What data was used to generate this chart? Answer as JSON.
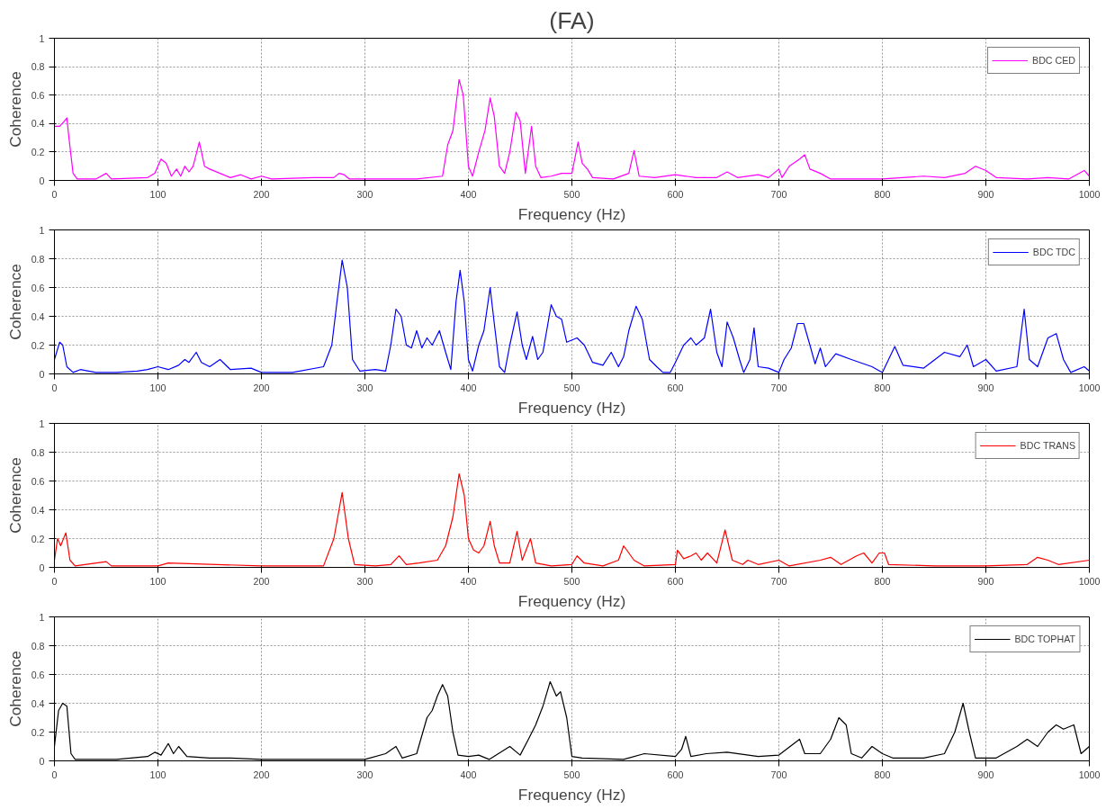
{
  "chart_data": [
    {
      "type": "line",
      "title": "(FA)",
      "xlabel": "Frequency (Hz)",
      "ylabel": "Coherence",
      "xlim": [
        0,
        1000
      ],
      "ylim": [
        0,
        1
      ],
      "xticks": [
        0,
        100,
        200,
        300,
        400,
        500,
        600,
        700,
        800,
        900,
        1000
      ],
      "yticks": [
        0,
        0.2,
        0.4,
        0.6,
        0.8,
        1
      ],
      "grid": true,
      "legend": "top right",
      "marker": "none",
      "line_style": "solid",
      "series": [
        {
          "name": "BDC CED",
          "color": "#ff00ff",
          "x": [
            0,
            5,
            10,
            12,
            14,
            18,
            22,
            40,
            50,
            55,
            90,
            97,
            103,
            108,
            113,
            118,
            122,
            126,
            130,
            134,
            140,
            145,
            150,
            160,
            170,
            180,
            190,
            200,
            210,
            250,
            270,
            275,
            280,
            285,
            300,
            350,
            375,
            380,
            385,
            391,
            395,
            400,
            404,
            410,
            416,
            421,
            425,
            430,
            435,
            440,
            446,
            450,
            455,
            461,
            465,
            470,
            480,
            490,
            500,
            506,
            510,
            515,
            520,
            540,
            555,
            560,
            565,
            580,
            600,
            620,
            640,
            650,
            660,
            680,
            690,
            700,
            703,
            710,
            720,
            725,
            730,
            740,
            750,
            800,
            840,
            860,
            880,
            890,
            900,
            910,
            940,
            960,
            980,
            995,
            1000
          ],
          "values": [
            0.38,
            0.38,
            0.42,
            0.44,
            0.3,
            0.05,
            0.01,
            0.01,
            0.05,
            0.01,
            0.02,
            0.05,
            0.15,
            0.12,
            0.03,
            0.08,
            0.03,
            0.1,
            0.06,
            0.1,
            0.27,
            0.1,
            0.08,
            0.05,
            0.02,
            0.04,
            0.01,
            0.03,
            0.01,
            0.02,
            0.02,
            0.05,
            0.04,
            0.01,
            0.01,
            0.01,
            0.03,
            0.25,
            0.35,
            0.71,
            0.6,
            0.1,
            0.03,
            0.2,
            0.35,
            0.58,
            0.45,
            0.1,
            0.05,
            0.2,
            0.48,
            0.42,
            0.05,
            0.38,
            0.1,
            0.02,
            0.03,
            0.05,
            0.05,
            0.27,
            0.12,
            0.08,
            0.02,
            0.01,
            0.05,
            0.21,
            0.03,
            0.02,
            0.04,
            0.02,
            0.02,
            0.06,
            0.02,
            0.04,
            0.02,
            0.08,
            0.02,
            0.1,
            0.15,
            0.18,
            0.08,
            0.05,
            0.01,
            0.01,
            0.03,
            0.02,
            0.05,
            0.1,
            0.07,
            0.02,
            0.01,
            0.02,
            0.01,
            0.07,
            0.03
          ]
        }
      ]
    },
    {
      "type": "line",
      "xlabel": "Frequency (Hz)",
      "ylabel": "Coherence",
      "xlim": [
        0,
        1000
      ],
      "ylim": [
        0,
        1
      ],
      "xticks": [
        0,
        100,
        200,
        300,
        400,
        500,
        600,
        700,
        800,
        900,
        1000
      ],
      "yticks": [
        0,
        0.2,
        0.4,
        0.6,
        0.8,
        1
      ],
      "grid": true,
      "legend": "top right",
      "marker": "none",
      "line_style": "solid",
      "series": [
        {
          "name": "BDC TDC",
          "color": "#0000ff",
          "x": [
            0,
            5,
            8,
            12,
            18,
            25,
            40,
            60,
            80,
            90,
            100,
            110,
            120,
            126,
            130,
            137,
            142,
            150,
            160,
            170,
            190,
            200,
            230,
            260,
            268,
            273,
            278,
            283,
            288,
            295,
            310,
            320,
            325,
            330,
            335,
            340,
            345,
            350,
            355,
            360,
            365,
            372,
            378,
            383,
            388,
            392,
            396,
            400,
            404,
            410,
            415,
            421,
            425,
            430,
            435,
            440,
            447,
            452,
            456,
            462,
            467,
            472,
            480,
            485,
            490,
            495,
            505,
            512,
            520,
            530,
            538,
            545,
            550,
            555,
            562,
            568,
            575,
            582,
            588,
            595,
            600,
            608,
            615,
            620,
            628,
            634,
            640,
            645,
            650,
            656,
            662,
            666,
            672,
            676,
            680,
            690,
            700,
            705,
            712,
            718,
            724,
            730,
            735,
            740,
            745,
            755,
            770,
            790,
            800,
            812,
            820,
            840,
            860,
            875,
            882,
            888,
            900,
            910,
            930,
            937,
            942,
            950,
            960,
            968,
            975,
            982,
            995,
            1000
          ],
          "values": [
            0.1,
            0.22,
            0.2,
            0.05,
            0.01,
            0.03,
            0.01,
            0.01,
            0.02,
            0.03,
            0.05,
            0.03,
            0.06,
            0.1,
            0.08,
            0.15,
            0.08,
            0.05,
            0.1,
            0.03,
            0.04,
            0.01,
            0.01,
            0.05,
            0.2,
            0.5,
            0.79,
            0.6,
            0.1,
            0.02,
            0.03,
            0.02,
            0.2,
            0.45,
            0.4,
            0.2,
            0.18,
            0.3,
            0.18,
            0.25,
            0.2,
            0.3,
            0.15,
            0.03,
            0.5,
            0.72,
            0.5,
            0.1,
            0.02,
            0.2,
            0.3,
            0.6,
            0.35,
            0.05,
            0.01,
            0.2,
            0.43,
            0.2,
            0.1,
            0.26,
            0.1,
            0.15,
            0.48,
            0.4,
            0.38,
            0.22,
            0.25,
            0.2,
            0.08,
            0.06,
            0.15,
            0.05,
            0.12,
            0.3,
            0.47,
            0.38,
            0.1,
            0.05,
            0.01,
            0.01,
            0.08,
            0.2,
            0.25,
            0.2,
            0.25,
            0.45,
            0.15,
            0.05,
            0.36,
            0.25,
            0.1,
            0.01,
            0.1,
            0.32,
            0.05,
            0.04,
            0.01,
            0.1,
            0.18,
            0.35,
            0.35,
            0.2,
            0.07,
            0.18,
            0.05,
            0.14,
            0.1,
            0.05,
            0.01,
            0.19,
            0.06,
            0.04,
            0.15,
            0.12,
            0.2,
            0.05,
            0.1,
            0.02,
            0.05,
            0.45,
            0.1,
            0.05,
            0.25,
            0.28,
            0.1,
            0.01,
            0.05,
            0.02
          ]
        }
      ]
    },
    {
      "type": "line",
      "xlabel": "Frequency (Hz)",
      "ylabel": "Coherence",
      "xlim": [
        0,
        1000
      ],
      "ylim": [
        0,
        1
      ],
      "xticks": [
        0,
        100,
        200,
        300,
        400,
        500,
        600,
        700,
        800,
        900,
        1000
      ],
      "yticks": [
        0,
        0.2,
        0.4,
        0.6,
        0.8,
        1
      ],
      "grid": true,
      "legend": "top right",
      "marker": "none",
      "line_style": "solid",
      "series": [
        {
          "name": "BDC TRANS",
          "color": "#ff0000",
          "x": [
            0,
            3,
            6,
            11,
            15,
            20,
            50,
            55,
            100,
            110,
            200,
            260,
            270,
            278,
            284,
            290,
            310,
            325,
            333,
            340,
            352,
            370,
            378,
            385,
            391,
            396,
            400,
            405,
            410,
            415,
            421,
            425,
            430,
            440,
            447,
            452,
            460,
            465,
            480,
            500,
            505,
            512,
            530,
            545,
            550,
            555,
            560,
            570,
            600,
            602,
            608,
            615,
            620,
            625,
            631,
            640,
            648,
            655,
            665,
            670,
            680,
            700,
            710,
            740,
            750,
            760,
            775,
            782,
            790,
            797,
            802,
            806,
            850,
            900,
            940,
            950,
            960,
            970,
            1000
          ],
          "values": [
            0.05,
            0.2,
            0.15,
            0.24,
            0.05,
            0.01,
            0.04,
            0.01,
            0.01,
            0.03,
            0.01,
            0.01,
            0.2,
            0.52,
            0.2,
            0.02,
            0.01,
            0.02,
            0.08,
            0.02,
            0.03,
            0.05,
            0.15,
            0.35,
            0.65,
            0.5,
            0.2,
            0.12,
            0.1,
            0.15,
            0.32,
            0.15,
            0.03,
            0.03,
            0.25,
            0.05,
            0.2,
            0.03,
            0.01,
            0.02,
            0.08,
            0.03,
            0.01,
            0.05,
            0.15,
            0.1,
            0.05,
            0.01,
            0.02,
            0.12,
            0.06,
            0.08,
            0.1,
            0.05,
            0.1,
            0.03,
            0.26,
            0.05,
            0.02,
            0.05,
            0.02,
            0.05,
            0.01,
            0.05,
            0.07,
            0.02,
            0.08,
            0.1,
            0.03,
            0.1,
            0.1,
            0.02,
            0.01,
            0.01,
            0.02,
            0.07,
            0.05,
            0.02,
            0.05
          ]
        }
      ]
    },
    {
      "type": "line",
      "xlabel": "Frequency (Hz)",
      "ylabel": "Coherence",
      "xlim": [
        0,
        1000
      ],
      "ylim": [
        0,
        1
      ],
      "xticks": [
        0,
        100,
        200,
        300,
        400,
        500,
        600,
        700,
        800,
        900,
        1000
      ],
      "yticks": [
        0,
        0.2,
        0.4,
        0.6,
        0.8,
        1
      ],
      "grid": true,
      "legend": "top right",
      "marker": "none",
      "line_style": "solid",
      "series": [
        {
          "name": "BDC TOPHAT",
          "color": "#000000",
          "x": [
            0,
            4,
            8,
            12,
            16,
            20,
            60,
            90,
            97,
            103,
            110,
            115,
            120,
            128,
            150,
            170,
            200,
            300,
            320,
            330,
            336,
            350,
            360,
            365,
            370,
            375,
            380,
            385,
            390,
            400,
            410,
            420,
            440,
            450,
            458,
            465,
            472,
            479,
            485,
            489,
            495,
            500,
            510,
            550,
            570,
            600,
            606,
            610,
            615,
            630,
            650,
            680,
            700,
            720,
            725,
            740,
            750,
            758,
            765,
            770,
            780,
            790,
            800,
            810,
            840,
            860,
            870,
            878,
            884,
            890,
            910,
            930,
            940,
            950,
            960,
            968,
            975,
            985,
            992,
            1000
          ],
          "values": [
            0.1,
            0.35,
            0.4,
            0.38,
            0.05,
            0.01,
            0.01,
            0.03,
            0.06,
            0.04,
            0.12,
            0.05,
            0.1,
            0.03,
            0.02,
            0.02,
            0.01,
            0.01,
            0.05,
            0.1,
            0.02,
            0.05,
            0.3,
            0.35,
            0.45,
            0.53,
            0.45,
            0.2,
            0.04,
            0.03,
            0.04,
            0.01,
            0.1,
            0.04,
            0.15,
            0.25,
            0.38,
            0.55,
            0.45,
            0.48,
            0.3,
            0.03,
            0.02,
            0.01,
            0.05,
            0.03,
            0.08,
            0.17,
            0.03,
            0.05,
            0.06,
            0.03,
            0.04,
            0.15,
            0.05,
            0.05,
            0.15,
            0.3,
            0.25,
            0.05,
            0.02,
            0.1,
            0.05,
            0.02,
            0.02,
            0.05,
            0.2,
            0.4,
            0.2,
            0.02,
            0.02,
            0.1,
            0.15,
            0.1,
            0.2,
            0.25,
            0.22,
            0.25,
            0.05,
            0.1
          ]
        }
      ]
    }
  ]
}
